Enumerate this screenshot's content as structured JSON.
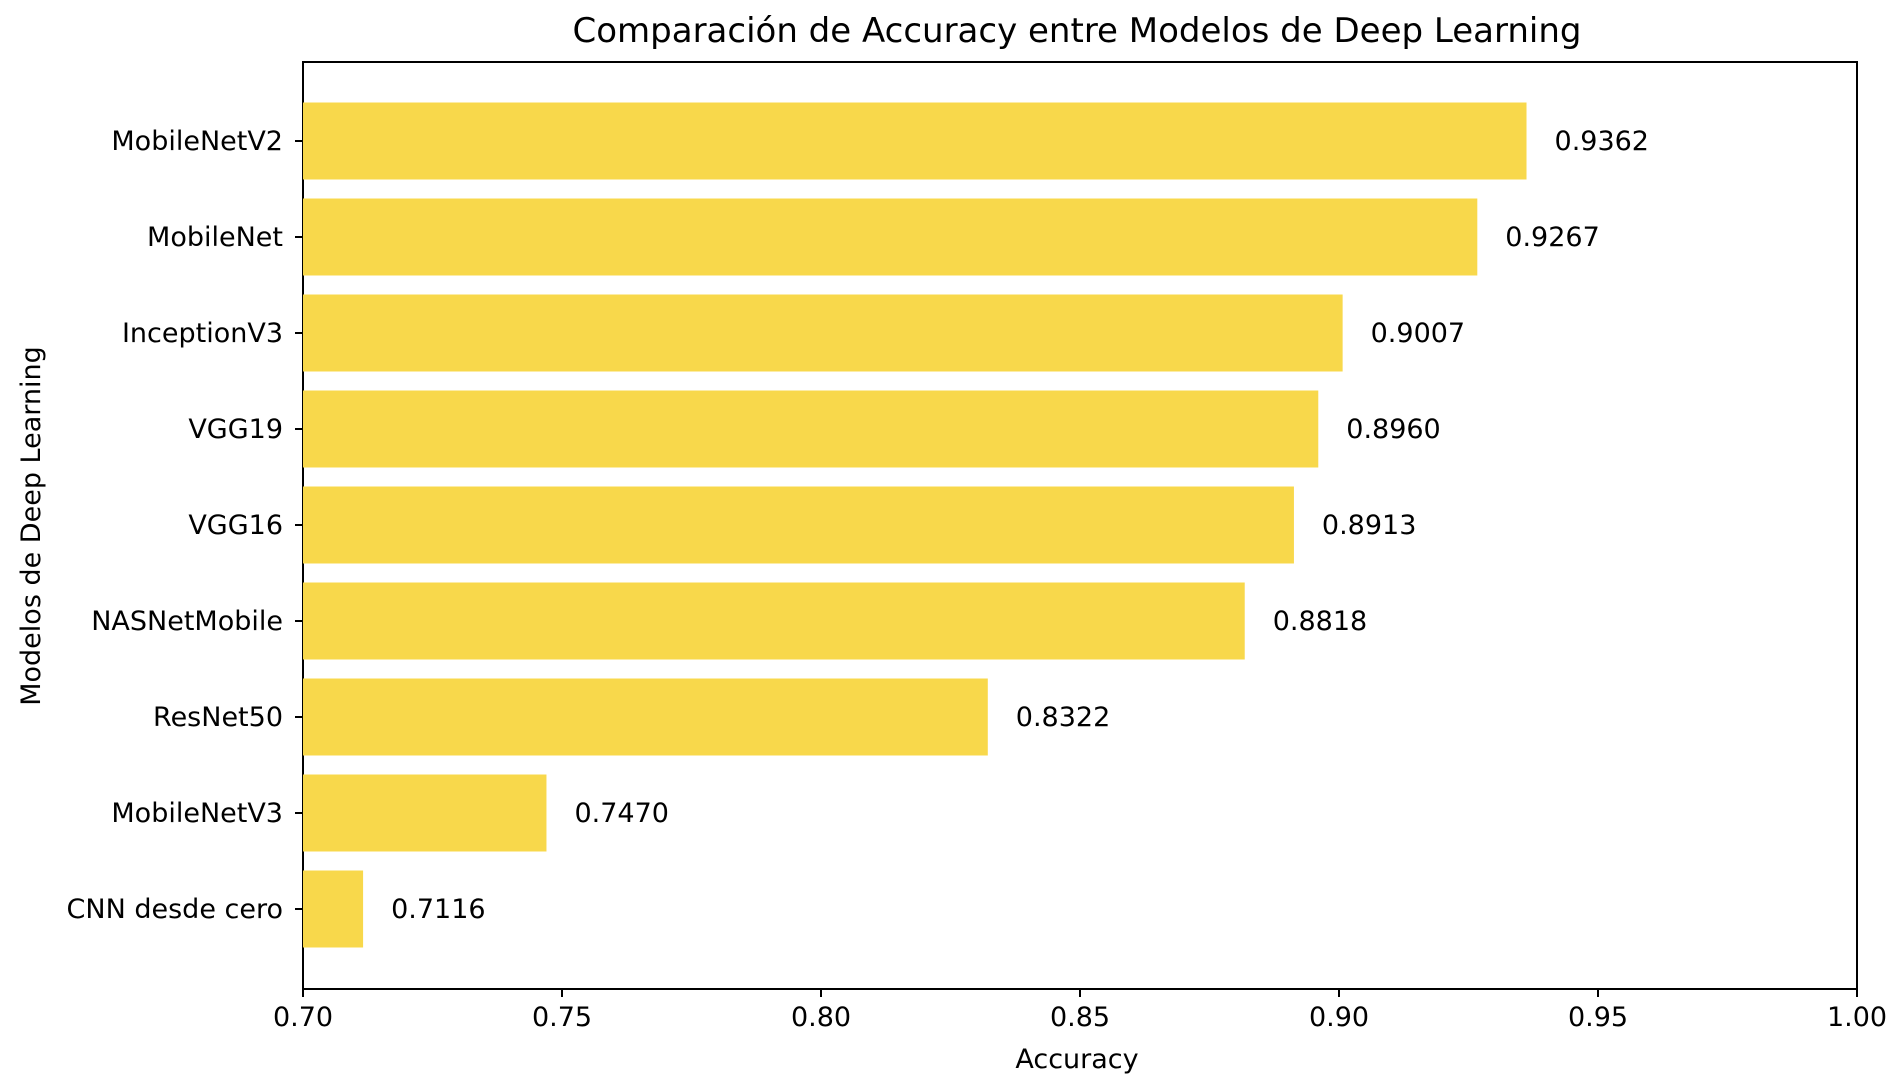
{
  "chart_data": {
    "type": "bar",
    "orientation": "horizontal",
    "title": "Comparación de Accuracy entre Modelos de Deep Learning",
    "xlabel": "Accuracy",
    "ylabel": "Modelos de Deep Learning",
    "xlim": [
      0.7,
      1.0
    ],
    "xticks": [
      "0.70",
      "0.75",
      "0.80",
      "0.85",
      "0.90",
      "0.95",
      "1.00"
    ],
    "categories": [
      "MobileNetV2",
      "MobileNet",
      "InceptionV3",
      "VGG19",
      "VGG16",
      "NASNetMobile",
      "ResNet50",
      "MobileNetV3",
      "CNN desde cero"
    ],
    "values": [
      0.9362,
      0.9267,
      0.9007,
      0.896,
      0.8913,
      0.8818,
      0.8322,
      0.747,
      0.7116
    ],
    "data_labels": [
      "0.9362",
      "0.9267",
      "0.9007",
      "0.8960",
      "0.8913",
      "0.8818",
      "0.8322",
      "0.7470",
      "0.7116"
    ],
    "bar_color": "#F8D84B",
    "grid": false,
    "legend": "none"
  }
}
